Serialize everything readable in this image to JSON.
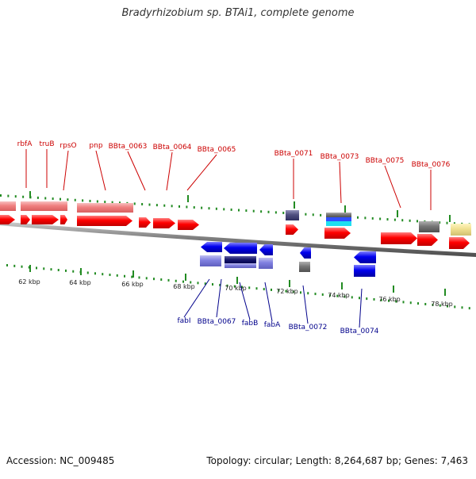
{
  "title": "Bradyrhizobium sp. BTAi1, complete genome",
  "footer": {
    "accession": "Accession: NC_009485",
    "summary": "Topology: circular; Length: 8,264,687 bp; Genes: 7,463"
  },
  "colors": {
    "forward_gene": "#ff0000",
    "forward_rna": "#f08080",
    "reverse_gene": "#0000ee",
    "reverse_rna": "#8080e0",
    "forward_label": "#cc0000",
    "reverse_label": "#00008b",
    "tick": "#228b22",
    "backbone": "#808080"
  },
  "ticks": [
    "62 kbp",
    "64 kbp",
    "66 kbp",
    "68 kbp",
    "70 kbp",
    "72 kbp",
    "74 kbp",
    "76 kbp",
    "78 kbp"
  ],
  "forward_labels": [
    "rbfA",
    "truB",
    "rpsO",
    "pnp",
    "BBta_0063",
    "BBta_0064",
    "BBta_0065",
    "BBta_0071",
    "BBta_0073",
    "BBta_0075",
    "BBta_0076"
  ],
  "reverse_labels": [
    "fabI",
    "BBta_0067",
    "fabB",
    "fabA",
    "BBta_0072",
    "BBta_0074"
  ]
}
